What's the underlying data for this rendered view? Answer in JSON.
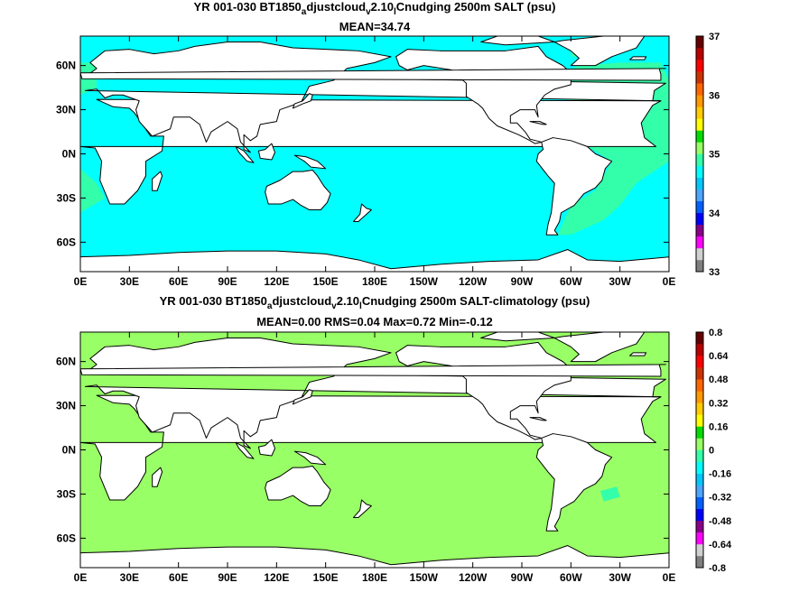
{
  "chart_data": [
    {
      "type": "heatmap",
      "title_line1_parts": [
        "YR 001-030 BT1850",
        "a",
        "djustcloud",
        "v",
        "2.10",
        "l",
        "Cnudging 2500m SALT (psu)"
      ],
      "title_line2": "MEAN=34.74",
      "stats": {
        "mean": 34.74
      },
      "x_ticks": [
        "0E",
        "30E",
        "60E",
        "90E",
        "120E",
        "150E",
        "180E",
        "150W",
        "120W",
        "90W",
        "60W",
        "30W",
        "0E"
      ],
      "y_ticks": [
        "60N",
        "30N",
        "0N",
        "30S",
        "60S"
      ],
      "xlim": [
        0,
        360
      ],
      "ylim": [
        -80,
        80
      ],
      "colorbar": {
        "min": 33,
        "max": 37,
        "tick_labels": [
          "33",
          "34",
          "35",
          "36",
          "37"
        ],
        "colors": [
          "#7f7f7f",
          "#d0d0d0",
          "#ff00ff",
          "#8b008b",
          "#0000ff",
          "#0060ff",
          "#4da6ff",
          "#00c8ff",
          "#00ffff",
          "#33ffaa",
          "#99ff66",
          "#00dd00",
          "#ffff00",
          "#ffcc00",
          "#ff9900",
          "#ff6600",
          "#cc3300",
          "#ff0000",
          "#bb0000",
          "#660000"
        ]
      },
      "dominant_values": {
        "pacific_indian_southern": 34.7,
        "north_atlantic": 34.92,
        "caribbean_gulf": 35.1
      }
    },
    {
      "type": "heatmap",
      "title_line1_parts": [
        "YR 001-030 BT1850",
        "a",
        "djustcloud",
        "v",
        "2.10",
        "l",
        "Cnudging 2500m SALT-climatology (psu)"
      ],
      "title_line2": "MEAN=0.00   RMS=0.04   Max=0.72   Min=-0.12",
      "stats": {
        "mean": 0.0,
        "rms": 0.04,
        "max": 0.72,
        "min": -0.12
      },
      "x_ticks": [
        "0E",
        "30E",
        "60E",
        "90E",
        "120E",
        "150E",
        "180E",
        "150W",
        "120W",
        "90W",
        "60W",
        "30W",
        "0E"
      ],
      "y_ticks": [
        "60N",
        "30N",
        "0N",
        "30S",
        "60S"
      ],
      "xlim": [
        0,
        360
      ],
      "ylim": [
        -80,
        80
      ],
      "colorbar": {
        "min": -0.8,
        "max": 0.8,
        "tick_labels": [
          "-0.8",
          "-0.64",
          "-0.48",
          "-0.32",
          "-0.16",
          "0",
          "0.16",
          "0.32",
          "0.48",
          "0.64",
          "0.8"
        ],
        "colors": [
          "#7f7f7f",
          "#d0d0d0",
          "#ff00ff",
          "#8b008b",
          "#0000ff",
          "#0060ff",
          "#4da6ff",
          "#00c8ff",
          "#00ffff",
          "#33ffaa",
          "#99ff66",
          "#00dd00",
          "#ffff00",
          "#ffcc00",
          "#ff9900",
          "#ff6600",
          "#cc3300",
          "#ff0000",
          "#bb0000",
          "#660000"
        ]
      },
      "dominant_values": {
        "most_ocean": 0.02,
        "patches": 0.06,
        "north_atlantic_ring": 0.1,
        "caribbean": 0.18,
        "south_atlantic_negative": -0.03
      }
    }
  ]
}
